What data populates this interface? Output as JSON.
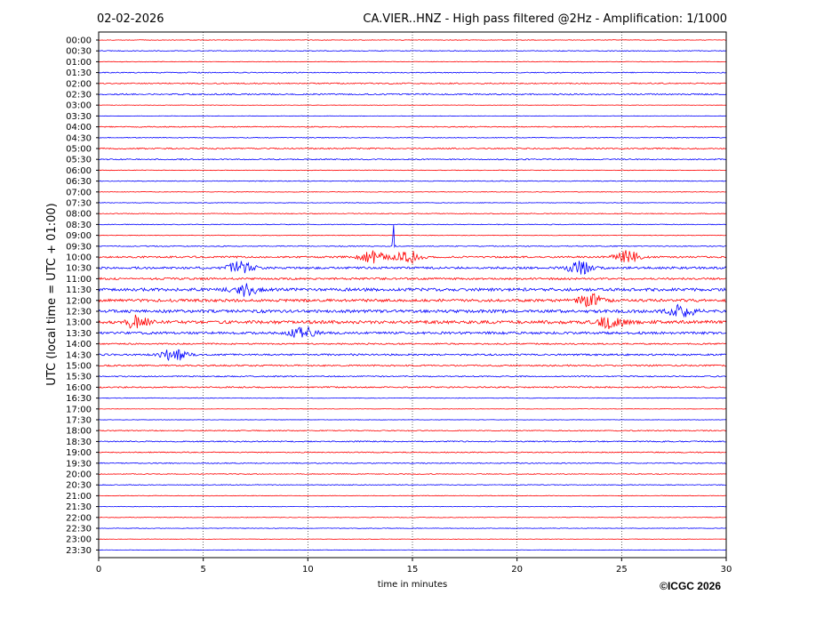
{
  "chart_data": {
    "type": "line",
    "date": "02-02-2026",
    "title": "CA.VIER..HNZ - High pass filtered @2Hz - Amplification: 1/1000",
    "xlabel": "time in minutes",
    "ylabel": "UTC (local time = UTC + 01:00)",
    "xlim": [
      0,
      30
    ],
    "x_ticks": [
      0,
      5,
      10,
      15,
      20,
      25,
      30
    ],
    "grid": "vertical dotted lines at 5-minute intervals",
    "row_labels": [
      "00:00",
      "00:30",
      "01:00",
      "01:30",
      "02:00",
      "02:30",
      "03:00",
      "03:30",
      "04:00",
      "04:30",
      "05:00",
      "05:30",
      "06:00",
      "06:30",
      "07:00",
      "07:30",
      "08:00",
      "08:30",
      "09:00",
      "09:30",
      "10:00",
      "10:30",
      "11:00",
      "11:30",
      "12:00",
      "12:30",
      "13:00",
      "13:30",
      "14:00",
      "14:30",
      "15:00",
      "15:30",
      "16:00",
      "16:30",
      "17:00",
      "17:30",
      "18:00",
      "18:30",
      "19:00",
      "19:30",
      "20:00",
      "20:30",
      "21:00",
      "21:30",
      "22:00",
      "22:30",
      "23:00",
      "23:30"
    ],
    "trace_colors": [
      "#ff0000",
      "#0000ff"
    ],
    "relative_noise_level": [
      0.15,
      0.2,
      0.15,
      0.25,
      0.3,
      0.35,
      0.1,
      0.1,
      0.25,
      0.2,
      0.35,
      0.3,
      0.15,
      0.2,
      0.15,
      0.15,
      0.2,
      0.2,
      0.15,
      0.25,
      0.45,
      0.55,
      0.5,
      0.75,
      0.7,
      0.75,
      0.8,
      0.6,
      0.35,
      0.45,
      0.4,
      0.3,
      0.35,
      0.15,
      0.1,
      0.1,
      0.25,
      0.3,
      0.25,
      0.25,
      0.2,
      0.2,
      0.15,
      0.15,
      0.15,
      0.15,
      0.1,
      0.1
    ],
    "events": [
      {
        "row": "09:30",
        "minute": 14.1,
        "description": "spike"
      },
      {
        "row": "10:00",
        "minute": 13.1,
        "description": "burst"
      },
      {
        "row": "10:00",
        "minute": 14.8,
        "description": "burst"
      },
      {
        "row": "10:00",
        "minute": 25.3,
        "description": "burst"
      },
      {
        "row": "10:30",
        "minute": 6.8,
        "description": "burst"
      },
      {
        "row": "10:30",
        "minute": 23.0,
        "description": "burst"
      },
      {
        "row": "11:30",
        "minute": 7.0,
        "description": "burst"
      },
      {
        "row": "12:00",
        "minute": 23.5,
        "description": "burst"
      },
      {
        "row": "12:30",
        "minute": 27.9,
        "description": "burst"
      },
      {
        "row": "13:00",
        "minute": 1.8,
        "description": "burst"
      },
      {
        "row": "13:00",
        "minute": 24.5,
        "description": "burst"
      },
      {
        "row": "13:30",
        "minute": 9.8,
        "description": "burst"
      },
      {
        "row": "14:30",
        "minute": 3.6,
        "description": "burst"
      }
    ]
  },
  "footer": {
    "credit": "©ICGC 2026"
  }
}
